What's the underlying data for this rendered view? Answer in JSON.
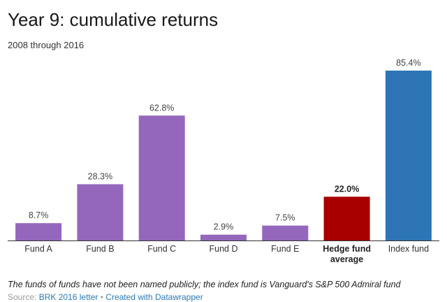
{
  "title": "Year 9: cumulative returns",
  "subtitle": "2008 through 2016",
  "notes": "The funds of funds have not been named publicly; the index fund is Vanguard's S&P 500 Admiral fund",
  "footer": {
    "source_prefix": "Source: ",
    "source_link": "BRK 2016 letter",
    "separator": " • ",
    "credit_link": "Created with Datawrapper"
  },
  "colors": {
    "fund": "#9467bd",
    "hedge_avg": "#a80000",
    "index": "#2e75b6",
    "axis": "#333333"
  },
  "chart_data": {
    "type": "bar",
    "title": "Year 9: cumulative returns",
    "subtitle": "2008 through 2016",
    "categories": [
      "Fund A",
      "Fund B",
      "Fund C",
      "Fund D",
      "Fund E",
      "Hedge fund average",
      "Index fund"
    ],
    "category_lines": [
      [
        "Fund A"
      ],
      [
        "Fund B"
      ],
      [
        "Fund C"
      ],
      [
        "Fund D"
      ],
      [
        "Fund E"
      ],
      [
        "Hedge fund",
        "average"
      ],
      [
        "Index fund"
      ]
    ],
    "values": [
      8.7,
      28.3,
      62.8,
      2.9,
      7.5,
      22.0,
      85.4
    ],
    "value_labels": [
      "8.7%",
      "28.3%",
      "62.8%",
      "2.9%",
      "7.5%",
      "22.0%",
      "85.4%"
    ],
    "bar_colors": [
      "#9467bd",
      "#9467bd",
      "#9467bd",
      "#9467bd",
      "#9467bd",
      "#a80000",
      "#2e75b6"
    ],
    "highlighted": [
      false,
      false,
      false,
      false,
      false,
      true,
      false
    ],
    "ylim": [
      0,
      85.4
    ],
    "grid": false
  }
}
